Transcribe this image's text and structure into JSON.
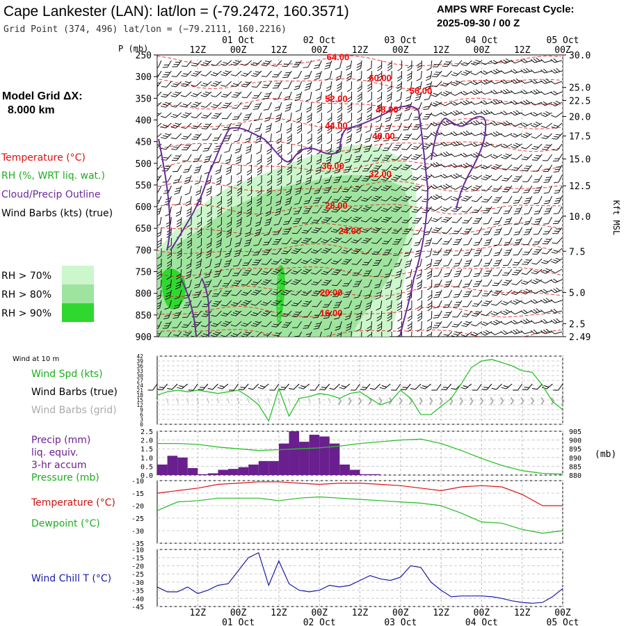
{
  "header": {
    "station_title": "Cape Lankester (LAN):  lat/lon = (-79.2472, 160.3571)",
    "grid_point": "Grid Point (374, 496) lat/lon = (−79.2111, 160.2216)",
    "cycle_label": "AMPS WRF Forecast Cycle:",
    "cycle_value": "2025-09-30 / 00  Z"
  },
  "sidebar": {
    "model_grid_label": "Model Grid ΔX:",
    "model_grid_value": "8.000 km",
    "legend_temperature": "Temperature (°C)",
    "legend_rh": "RH (%, WRT liq. wat.)",
    "legend_cloud": "Cloud/Precip Outline",
    "legend_wind": "Wind Barbs (kts) (true)",
    "rh_levels": [
      "RH > 70%",
      "RH > 80%",
      "RH > 90%"
    ]
  },
  "colors": {
    "temperature": "#ff0000",
    "rh": "#22cc22",
    "cloud": "#6a2a9a",
    "precip_bar": "#6a1f8f",
    "windchill": "#0000aa",
    "rh70": "#ccf6cc",
    "rh80": "#9ee49e",
    "rh90": "#2fd82f",
    "grid_barbs": "#bbbbbb"
  },
  "chart_data": [
    {
      "type": "line",
      "name": "time-height cross section",
      "p_axis_label": "P (mb)",
      "pressure_levels": [
        250,
        300,
        350,
        400,
        450,
        500,
        550,
        600,
        650,
        700,
        750,
        800,
        850,
        900
      ],
      "ylim": [
        250,
        900
      ],
      "kft_label": "Kft MSL",
      "kft_ticks": [
        "30.0",
        "25.0",
        "22.5",
        "20.0",
        "17.5",
        "15.0",
        "12.5",
        "10.0",
        "7.5",
        "5.0",
        "2.5",
        "2.49"
      ],
      "kft_tick_pressures": [
        250,
        325,
        355,
        392,
        437,
        490,
        552,
        622,
        703,
        798,
        870,
        900
      ],
      "time_labels_top": [
        "12Z",
        "00Z",
        "12Z",
        "00Z",
        "12Z",
        "00Z",
        "12Z",
        "00Z",
        "12Z",
        "00Z"
      ],
      "day_labels_top": [
        "01 Oct",
        "02 Oct",
        "03 Oct",
        "04 Oct",
        "05 Oct"
      ],
      "time_labels_bottom": [
        "12Z",
        "00Z",
        "12Z",
        "00Z",
        "12Z",
        "00Z",
        "12Z",
        "00Z",
        "12Z",
        "00Z"
      ],
      "day_labels_bottom": [
        "01 Oct",
        "02 Oct",
        "03 Oct",
        "04 Oct",
        "05 Oct"
      ],
      "forecast_hours": [
        12,
        24,
        36,
        48,
        60,
        72,
        84,
        96,
        108,
        120
      ],
      "isotherm_labels": [
        {
          "text": "64.00",
          "t_hr": 53.5,
          "p": 262
        },
        {
          "text": "60.00",
          "t_hr": 66,
          "p": 310
        },
        {
          "text": "56.00",
          "t_hr": 78,
          "p": 340
        },
        {
          "text": "52.00",
          "t_hr": 53,
          "p": 358
        },
        {
          "text": "48.00",
          "t_hr": 68,
          "p": 383
        },
        {
          "text": "44.00",
          "t_hr": 53,
          "p": 420
        },
        {
          "text": "40.00",
          "t_hr": 67,
          "p": 444
        },
        {
          "text": "36.00",
          "t_hr": 52,
          "p": 513
        },
        {
          "text": "32.00",
          "t_hr": 66,
          "p": 532
        },
        {
          "text": "28.00",
          "t_hr": 53,
          "p": 605
        },
        {
          "text": "24.00",
          "t_hr": 57,
          "p": 663
        },
        {
          "text": "20.00",
          "t_hr": 51.5,
          "p": 805
        },
        {
          "text": "16.00",
          "t_hr": 51.5,
          "p": 853
        }
      ]
    },
    {
      "type": "line",
      "name": "wind at 10 m",
      "panel_label": "Wind at 10 m",
      "legend": [
        "Wind Spd (kts)",
        "Wind Barbs (true)",
        "Wind Barbs (grid)"
      ],
      "y_ticks": [
        0,
        3,
        6,
        9,
        12,
        15,
        18,
        21,
        24,
        27,
        30,
        33,
        36,
        39,
        42
      ],
      "ylim": [
        0,
        42
      ],
      "x_hours": [
        0,
        3,
        6,
        9,
        12,
        15,
        18,
        21,
        24,
        27,
        30,
        33,
        36,
        39,
        42,
        45,
        48,
        51,
        54,
        57,
        60,
        63,
        66,
        69,
        72,
        75,
        78,
        81,
        84,
        87,
        90,
        93,
        96,
        99,
        102,
        105,
        108,
        111,
        114,
        117,
        120
      ],
      "wind_speed": [
        18,
        20,
        21,
        20,
        21,
        20,
        19,
        20,
        21,
        17,
        12,
        2,
        22,
        5,
        16,
        17,
        19,
        18,
        16,
        19,
        20,
        16,
        12,
        14,
        21,
        16,
        6,
        6,
        11,
        16,
        25,
        35,
        39,
        40,
        38,
        36,
        33,
        32,
        24,
        14,
        9
      ]
    },
    {
      "type": "bar",
      "name": "precip and pressure",
      "legend": [
        "Precip (mm)",
        "liq. equiv.",
        "3-hr accum",
        "Pressure (mb)"
      ],
      "y_left_ticks": [
        "0.0",
        "0.5",
        "1.0",
        "1.5",
        "2.0",
        "2.5"
      ],
      "y_right_ticks": [
        "880",
        "885",
        "890",
        "895",
        "900",
        "905"
      ],
      "right_unit": "(mb)",
      "ylim_precip": [
        0,
        2.5
      ],
      "ylim_pressure": [
        880,
        905
      ],
      "precip_x_hours": [
        1.5,
        4.5,
        7.5,
        10.5,
        13.5,
        16.5,
        19.5,
        22.5,
        25.5,
        28.5,
        31.5,
        34.5,
        37.5,
        40.5,
        43.5,
        46.5,
        49.5,
        52.5,
        55.5,
        58.5,
        61.5,
        64.5
      ],
      "precip": [
        0.6,
        1.1,
        1.0,
        0.4,
        0.05,
        0.1,
        0.3,
        0.35,
        0.45,
        0.6,
        0.8,
        0.8,
        1.8,
        2.5,
        1.9,
        2.3,
        2.2,
        1.8,
        0.6,
        0.3,
        0.05,
        0.05
      ],
      "pressure_x_hours": [
        0,
        6,
        12,
        18,
        24,
        30,
        36,
        42,
        48,
        54,
        60,
        66,
        72,
        78,
        84,
        90,
        96,
        102,
        108,
        114,
        120
      ],
      "pressure": [
        898,
        898,
        897.5,
        896,
        895,
        894,
        894.5,
        895,
        895.5,
        896.5,
        898,
        899,
        900,
        900.5,
        898,
        894,
        889.5,
        885.5,
        882.5,
        881,
        880.5
      ]
    },
    {
      "type": "line",
      "name": "temperature and dewpoint",
      "legend": [
        "Temperature (°C)",
        "Dewpoint (°C)"
      ],
      "y_ticks": [
        -35,
        -30,
        -25,
        -20,
        -15,
        -10
      ],
      "ylim": [
        -35,
        -10
      ],
      "x_hours": [
        0,
        6,
        12,
        18,
        24,
        30,
        36,
        42,
        48,
        54,
        60,
        66,
        72,
        78,
        84,
        90,
        96,
        102,
        108,
        114,
        120
      ],
      "temperature": [
        -15,
        -14,
        -13,
        -11.5,
        -11,
        -10.5,
        -10.5,
        -11,
        -11.5,
        -11,
        -11,
        -11.5,
        -12,
        -13,
        -14,
        -12.5,
        -12,
        -12.5,
        -15.5,
        -20,
        -20
      ],
      "dewpoint": [
        -22,
        -18.5,
        -18,
        -17,
        -17,
        -17,
        -18,
        -17,
        -16.5,
        -17,
        -17.5,
        -18,
        -18.5,
        -19,
        -20,
        -23,
        -26.5,
        -27,
        -29.5,
        -31,
        -30
      ]
    },
    {
      "type": "line",
      "name": "wind chill",
      "legend": [
        "Wind Chill T (°C)"
      ],
      "y_ticks": [
        -45,
        -40,
        -35,
        -30,
        -25,
        -20,
        -15,
        -10
      ],
      "ylim": [
        -45,
        -10
      ],
      "x_hours": [
        0,
        3,
        6,
        9,
        12,
        15,
        18,
        21,
        24,
        27,
        30,
        33,
        36,
        39,
        42,
        45,
        48,
        51,
        54,
        57,
        60,
        63,
        66,
        69,
        72,
        75,
        78,
        81,
        84,
        87,
        90,
        93,
        96,
        99,
        102,
        105,
        108,
        111,
        114,
        117,
        120
      ],
      "windchill": [
        -33,
        -36,
        -36,
        -33,
        -37,
        -35,
        -32,
        -31,
        -23,
        -15,
        -12,
        -32,
        -17,
        -31,
        -35,
        -36,
        -35,
        -32,
        -33,
        -32,
        -29,
        -26,
        -28,
        -29,
        -27,
        -20,
        -21,
        -30,
        -35,
        -39,
        -38.5,
        -38.5,
        -38.5,
        -39,
        -40,
        -41.5,
        -42.5,
        -43,
        -42.5,
        -39,
        -34
      ]
    }
  ]
}
